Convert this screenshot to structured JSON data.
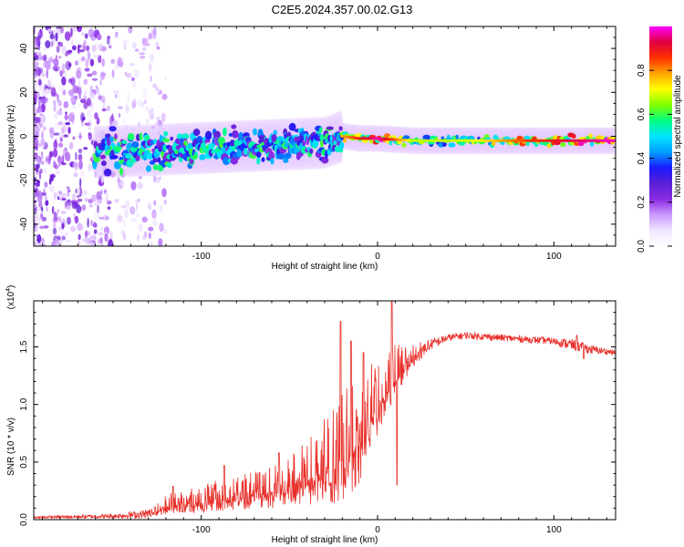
{
  "title": "C2E5.2024.357.00.02.G13",
  "chart_data": [
    {
      "type": "heatmap",
      "name": "spectrogram",
      "xlabel": "Height of straight line (km)",
      "ylabel": "Frequency (Hz)",
      "xlim": [
        -195,
        135
      ],
      "ylim": [
        -50,
        50
      ],
      "xticks": [
        -100,
        0,
        100
      ],
      "yticks": [
        -40,
        -20,
        0,
        20,
        40
      ],
      "colorbar": {
        "label": "Normalized spectral amplitude",
        "range": [
          0,
          1
        ],
        "ticks": [
          0.0,
          0.2,
          0.4,
          0.6,
          0.8
        ],
        "tick_labels": [
          "0.0",
          "0.2",
          "0.4",
          "0.6",
          "0.8"
        ],
        "colormap": [
          "#ffffff",
          "#f0e6ff",
          "#cc99ff",
          "#8a2be2",
          "#5a1fd6",
          "#1a1aff",
          "#00a0ff",
          "#00e5ff",
          "#00ff80",
          "#80ff00",
          "#ffff00",
          "#ffa500",
          "#ff3000",
          "#e00040",
          "#ff00ff"
        ]
      },
      "ridge": [
        {
          "x": -150,
          "y": -7,
          "amp": 0.25
        },
        {
          "x": -120,
          "y": -6,
          "amp": 0.3
        },
        {
          "x": -90,
          "y": -5,
          "amp": 0.35
        },
        {
          "x": -60,
          "y": -4,
          "amp": 0.4
        },
        {
          "x": -30,
          "y": -3,
          "amp": 0.45
        },
        {
          "x": -20,
          "y": 0,
          "amp": 0.7
        },
        {
          "x": -10,
          "y": -1,
          "amp": 0.8
        },
        {
          "x": 0,
          "y": -1,
          "amp": 0.9
        },
        {
          "x": 20,
          "y": -2,
          "amp": 0.6
        },
        {
          "x": 50,
          "y": -2,
          "amp": 0.6
        },
        {
          "x": 80,
          "y": -2,
          "amp": 0.75
        },
        {
          "x": 110,
          "y": -2,
          "amp": 0.85
        },
        {
          "x": 135,
          "y": -2,
          "amp": 0.9
        }
      ]
    },
    {
      "type": "line",
      "name": "snr",
      "xlabel": "Height of straight line (km)",
      "ylabel": "SNR (10 * v/v)",
      "multiplier": "(x10",
      "multiplier_exp": "4",
      "multiplier_close": ")",
      "xlim": [
        -195,
        135
      ],
      "ylim": [
        0,
        1.9
      ],
      "xticks": [
        -100,
        0,
        100
      ],
      "yticks": [
        0.0,
        0.5,
        1.0,
        1.5
      ],
      "ytick_labels": [
        "0.0",
        "0.5",
        "1.0",
        "1.5"
      ],
      "color": "#e8302a",
      "envelope": {
        "x": [
          -195,
          -150,
          -130,
          -125,
          -120,
          -100,
          -80,
          -60,
          -50,
          -40,
          -30,
          -20,
          -10,
          -5,
          0,
          5,
          10,
          20,
          30,
          40,
          50,
          60,
          80,
          100,
          110,
          120,
          135
        ],
        "base": [
          0.02,
          0.03,
          0.05,
          0.08,
          0.12,
          0.16,
          0.2,
          0.25,
          0.3,
          0.35,
          0.45,
          0.55,
          0.7,
          0.85,
          1.0,
          1.15,
          1.25,
          1.4,
          1.52,
          1.58,
          1.6,
          1.59,
          1.57,
          1.55,
          1.52,
          1.48,
          1.45
        ],
        "spread": [
          0.01,
          0.02,
          0.04,
          0.06,
          0.1,
          0.14,
          0.16,
          0.2,
          0.25,
          0.3,
          0.4,
          0.55,
          0.5,
          0.45,
          0.35,
          0.3,
          0.25,
          0.12,
          0.05,
          0.03,
          0.03,
          0.03,
          0.03,
          0.03,
          0.05,
          0.04,
          0.02
        ]
      },
      "peaks": [
        {
          "x": -116,
          "y": 0.29
        },
        {
          "x": -87,
          "y": 0.47
        },
        {
          "x": -56,
          "y": 0.58
        },
        {
          "x": -21,
          "y": 1.72
        },
        {
          "x": -15,
          "y": 1.55
        },
        {
          "x": -8,
          "y": 1.45
        },
        {
          "x": 8,
          "y": 1.92
        },
        {
          "x": 11,
          "y": 0.3
        },
        {
          "x": 113,
          "y": 1.6
        },
        {
          "x": 117,
          "y": 1.4
        }
      ]
    }
  ]
}
